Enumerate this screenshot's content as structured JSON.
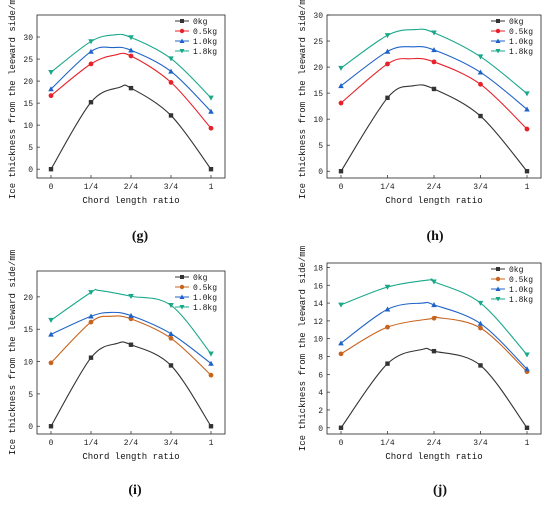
{
  "chart_data": [
    {
      "panel_label": "(g)",
      "type": "line",
      "xlabel": "Chord length ratio",
      "ylabel": "Ice thickness from the leeward side/mm",
      "categories": [
        "0",
        "1/4",
        "2/4",
        "3/4",
        "1"
      ],
      "ylim": [
        -2,
        35
      ],
      "yticks": [
        0,
        5,
        10,
        15,
        20,
        25,
        30
      ],
      "grid": false,
      "legend": "top-right",
      "series": [
        {
          "name": "0kg",
          "color": "#333333",
          "marker": "square",
          "values": [
            0,
            15.2,
            18.4,
            12.2,
            0
          ],
          "peak": [
            1.72,
            18.6
          ]
        },
        {
          "name": "0.5kg",
          "color": "#e8202a",
          "marker": "circle",
          "values": [
            16.7,
            23.9,
            25.7,
            19.7,
            9.3
          ],
          "peak": [
            1.6,
            25.9
          ]
        },
        {
          "name": "1.0kg",
          "color": "#1f63c8",
          "marker": "triangle-up",
          "values": [
            18.2,
            26.7,
            27.0,
            22.2,
            13.1
          ],
          "peak": [
            1.55,
            27.6
          ]
        },
        {
          "name": "1.8kg",
          "color": "#1aa88a",
          "marker": "triangle-down",
          "values": [
            22.0,
            29.0,
            29.9,
            25.1,
            16.2
          ],
          "peak": [
            1.6,
            30.5
          ]
        }
      ]
    },
    {
      "panel_label": "(h)",
      "type": "line",
      "xlabel": "Chord length ratio",
      "ylabel": "Ice thickness from the leeward side/mm",
      "categories": [
        "0",
        "1/4",
        "2/4",
        "3/4",
        "1"
      ],
      "ylim": [
        -1.3,
        30
      ],
      "yticks": [
        0,
        5,
        10,
        15,
        20,
        25,
        30
      ],
      "grid": false,
      "legend": "top-right",
      "series": [
        {
          "name": "0kg",
          "color": "#333333",
          "marker": "square",
          "values": [
            0,
            14.1,
            15.8,
            10.6,
            0
          ],
          "peak": [
            1.55,
            16.4
          ]
        },
        {
          "name": "0.5kg",
          "color": "#e8202a",
          "marker": "circle",
          "values": [
            13.1,
            20.6,
            21.0,
            16.7,
            8.1
          ],
          "peak": [
            1.5,
            21.6
          ]
        },
        {
          "name": "1.0kg",
          "color": "#1f63c8",
          "marker": "triangle-up",
          "values": [
            16.4,
            23.0,
            23.3,
            19.0,
            11.9
          ],
          "peak": [
            1.55,
            23.9
          ]
        },
        {
          "name": "1.8kg",
          "color": "#1aa88a",
          "marker": "triangle-down",
          "values": [
            19.8,
            26.1,
            26.6,
            22.0,
            14.9
          ],
          "peak": [
            1.6,
            27.2
          ]
        }
      ]
    },
    {
      "panel_label": "(i)",
      "type": "line",
      "xlabel": "Chord length ratio",
      "ylabel": "Ice thickness from the leeward side/mm",
      "categories": [
        "0",
        "1/4",
        "2/4",
        "3/4",
        "1"
      ],
      "ylim": [
        -1.2,
        24
      ],
      "yticks": [
        0,
        5,
        10,
        15,
        20
      ],
      "grid": false,
      "legend": "top-right",
      "series": [
        {
          "name": "0kg",
          "color": "#333333",
          "marker": "square",
          "values": [
            0,
            10.6,
            12.6,
            9.4,
            0
          ],
          "peak": [
            1.65,
            12.8
          ]
        },
        {
          "name": "0.5kg",
          "color": "#c8641e",
          "marker": "circle",
          "values": [
            9.8,
            16.1,
            16.6,
            13.6,
            7.9
          ],
          "peak": [
            1.5,
            17.0
          ]
        },
        {
          "name": "1.0kg",
          "color": "#1f63c8",
          "marker": "triangle-up",
          "values": [
            14.2,
            17.0,
            17.1,
            14.3,
            9.7
          ],
          "peak": [
            1.5,
            17.6
          ]
        },
        {
          "name": "1.8kg",
          "color": "#1aa88a",
          "marker": "triangle-down",
          "values": [
            16.4,
            20.7,
            20.1,
            18.7,
            11.2
          ],
          "peak": [
            1.2,
            21.0
          ]
        }
      ]
    },
    {
      "panel_label": "(j)",
      "type": "line",
      "xlabel": "Chord length ratio",
      "ylabel": "Ice thickness from the leeward side/mm",
      "categories": [
        "0",
        "1/4",
        "2/4",
        "3/4",
        "1"
      ],
      "ylim": [
        -0.7,
        18.5
      ],
      "yticks": [
        0,
        2,
        4,
        6,
        8,
        10,
        12,
        14,
        16,
        18
      ],
      "grid": false,
      "legend": "top-right",
      "series": [
        {
          "name": "0kg",
          "color": "#333333",
          "marker": "square",
          "values": [
            0,
            7.2,
            8.6,
            7.0,
            0
          ],
          "peak": [
            1.75,
            8.8
          ]
        },
        {
          "name": "0.5kg",
          "color": "#c8641e",
          "marker": "circle",
          "values": [
            8.3,
            11.3,
            12.3,
            11.2,
            6.3
          ],
          "peak": [
            2.05,
            12.4
          ]
        },
        {
          "name": "1.0kg",
          "color": "#1f63c8",
          "marker": "triangle-up",
          "values": [
            9.5,
            13.3,
            13.8,
            11.7,
            6.6
          ],
          "peak": [
            1.75,
            14.0
          ]
        },
        {
          "name": "1.8kg",
          "color": "#1aa88a",
          "marker": "triangle-down",
          "values": [
            13.8,
            15.8,
            16.4,
            14.0,
            8.2
          ],
          "peak": [
            1.9,
            16.6
          ]
        }
      ]
    }
  ]
}
